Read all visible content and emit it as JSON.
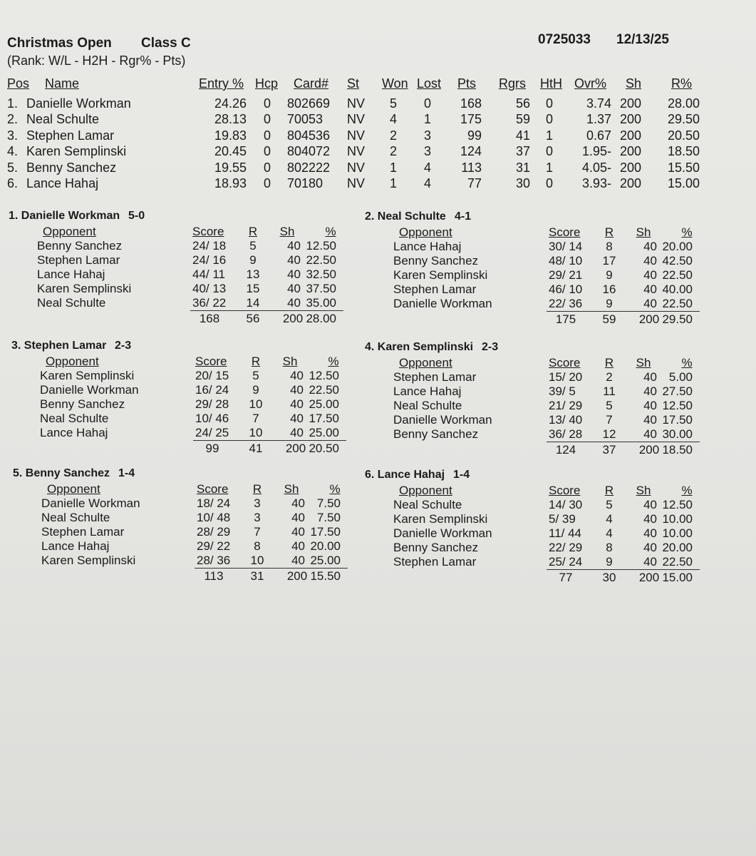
{
  "header": {
    "title": "Christmas Open",
    "class": "Class C",
    "event_id": "0725033",
    "date": "12/13/25",
    "subtitle": "(Rank: W/L - H2H - Rgr% - Pts)"
  },
  "standings": {
    "columns": [
      "Pos",
      "Name",
      "Entry %",
      "Hcp",
      "Card#",
      "St",
      "Won",
      "Lost",
      "Pts",
      "Rgrs",
      "HtH",
      "Ovr%",
      "Sh",
      "R%"
    ],
    "rows": [
      [
        "1.",
        "Danielle Workman",
        "24.26",
        "0",
        "802669",
        "NV",
        "5",
        "0",
        "168",
        "56",
        "0",
        "3.74",
        "200",
        "28.00"
      ],
      [
        "2.",
        "Neal Schulte",
        "28.13",
        "0",
        "70053",
        "NV",
        "4",
        "1",
        "175",
        "59",
        "0",
        "1.37",
        "200",
        "29.50"
      ],
      [
        "3.",
        "Stephen Lamar",
        "19.83",
        "0",
        "804536",
        "NV",
        "2",
        "3",
        "99",
        "41",
        "1",
        "0.67",
        "200",
        "20.50"
      ],
      [
        "4.",
        "Karen Semplinski",
        "20.45",
        "0",
        "804072",
        "NV",
        "2",
        "3",
        "124",
        "37",
        "0",
        "1.95-",
        "200",
        "18.50"
      ],
      [
        "5.",
        "Benny Sanchez",
        "19.55",
        "0",
        "802222",
        "NV",
        "1",
        "4",
        "113",
        "31",
        "1",
        "4.05-",
        "200",
        "15.50"
      ],
      [
        "6.",
        "Lance Hahaj",
        "18.93",
        "0",
        "70180",
        "NV",
        "1",
        "4",
        "77",
        "30",
        "0",
        "3.93-",
        "200",
        "15.00"
      ]
    ]
  },
  "sections": [
    {
      "heading": "1. Danielle Workman",
      "record": "5-0",
      "columns": [
        "Opponent",
        "Score",
        "R",
        "Sh",
        "%"
      ],
      "rows": [
        [
          "Benny Sanchez",
          "24/ 18",
          "5",
          "40",
          "12.50"
        ],
        [
          "Stephen Lamar",
          "24/ 16",
          "9",
          "40",
          "22.50"
        ],
        [
          "Lance Hahaj",
          "44/ 11",
          "13",
          "40",
          "32.50"
        ],
        [
          "Karen Semplinski",
          "40/ 13",
          "15",
          "40",
          "37.50"
        ],
        [
          "Neal Schulte",
          "36/ 22",
          "14",
          "40",
          "35.00"
        ]
      ],
      "totals": [
        "168",
        "56",
        "200",
        "28.00"
      ]
    },
    {
      "heading": "2. Neal Schulte",
      "record": "4-1",
      "columns": [
        "Opponent",
        "Score",
        "R",
        "Sh",
        "%"
      ],
      "rows": [
        [
          "Lance Hahaj",
          "30/ 14",
          "8",
          "40",
          "20.00"
        ],
        [
          "Benny Sanchez",
          "48/ 10",
          "17",
          "40",
          "42.50"
        ],
        [
          "Karen Semplinski",
          "29/ 21",
          "9",
          "40",
          "22.50"
        ],
        [
          "Stephen Lamar",
          "46/ 10",
          "16",
          "40",
          "40.00"
        ],
        [
          "Danielle Workman",
          "22/ 36",
          "9",
          "40",
          "22.50"
        ]
      ],
      "totals": [
        "175",
        "59",
        "200",
        "29.50"
      ]
    },
    {
      "heading": "3. Stephen Lamar",
      "record": "2-3",
      "columns": [
        "Opponent",
        "Score",
        "R",
        "Sh",
        "%"
      ],
      "rows": [
        [
          "Karen Semplinski",
          "20/ 15",
          "5",
          "40",
          "12.50"
        ],
        [
          "Danielle Workman",
          "16/ 24",
          "9",
          "40",
          "22.50"
        ],
        [
          "Benny Sanchez",
          "29/ 28",
          "10",
          "40",
          "25.00"
        ],
        [
          "Neal Schulte",
          "10/ 46",
          "7",
          "40",
          "17.50"
        ],
        [
          "Lance Hahaj",
          "24/ 25",
          "10",
          "40",
          "25.00"
        ]
      ],
      "totals": [
        "99",
        "41",
        "200",
        "20.50"
      ]
    },
    {
      "heading": "4. Karen Semplinski",
      "record": "2-3",
      "columns": [
        "Opponent",
        "Score",
        "R",
        "Sh",
        "%"
      ],
      "rows": [
        [
          "Stephen Lamar",
          "15/ 20",
          "2",
          "40",
          "5.00"
        ],
        [
          "Lance Hahaj",
          "39/ 5",
          "11",
          "40",
          "27.50"
        ],
        [
          "Neal Schulte",
          "21/ 29",
          "5",
          "40",
          "12.50"
        ],
        [
          "Danielle Workman",
          "13/ 40",
          "7",
          "40",
          "17.50"
        ],
        [
          "Benny Sanchez",
          "36/ 28",
          "12",
          "40",
          "30.00"
        ]
      ],
      "totals": [
        "124",
        "37",
        "200",
        "18.50"
      ]
    },
    {
      "heading": "5. Benny Sanchez",
      "record": "1-4",
      "columns": [
        "Opponent",
        "Score",
        "R",
        "Sh",
        "%"
      ],
      "rows": [
        [
          "Danielle Workman",
          "18/ 24",
          "3",
          "40",
          "7.50"
        ],
        [
          "Neal Schulte",
          "10/ 48",
          "3",
          "40",
          "7.50"
        ],
        [
          "Stephen Lamar",
          "28/ 29",
          "7",
          "40",
          "17.50"
        ],
        [
          "Lance Hahaj",
          "29/ 22",
          "8",
          "40",
          "20.00"
        ],
        [
          "Karen Semplinski",
          "28/ 36",
          "10",
          "40",
          "25.00"
        ]
      ],
      "totals": [
        "113",
        "31",
        "200",
        "15.50"
      ]
    },
    {
      "heading": "6. Lance Hahaj",
      "record": "1-4",
      "columns": [
        "Opponent",
        "Score",
        "R",
        "Sh",
        "%"
      ],
      "rows": [
        [
          "Neal Schulte",
          "14/ 30",
          "5",
          "40",
          "12.50"
        ],
        [
          "Karen Semplinski",
          "5/ 39",
          "4",
          "40",
          "10.00"
        ],
        [
          "Danielle Workman",
          "11/ 44",
          "4",
          "40",
          "10.00"
        ],
        [
          "Benny Sanchez",
          "22/ 29",
          "8",
          "40",
          "20.00"
        ],
        [
          "Stephen Lamar",
          "25/ 24",
          "9",
          "40",
          "22.50"
        ]
      ],
      "totals": [
        "77",
        "30",
        "200",
        "15.00"
      ]
    }
  ]
}
